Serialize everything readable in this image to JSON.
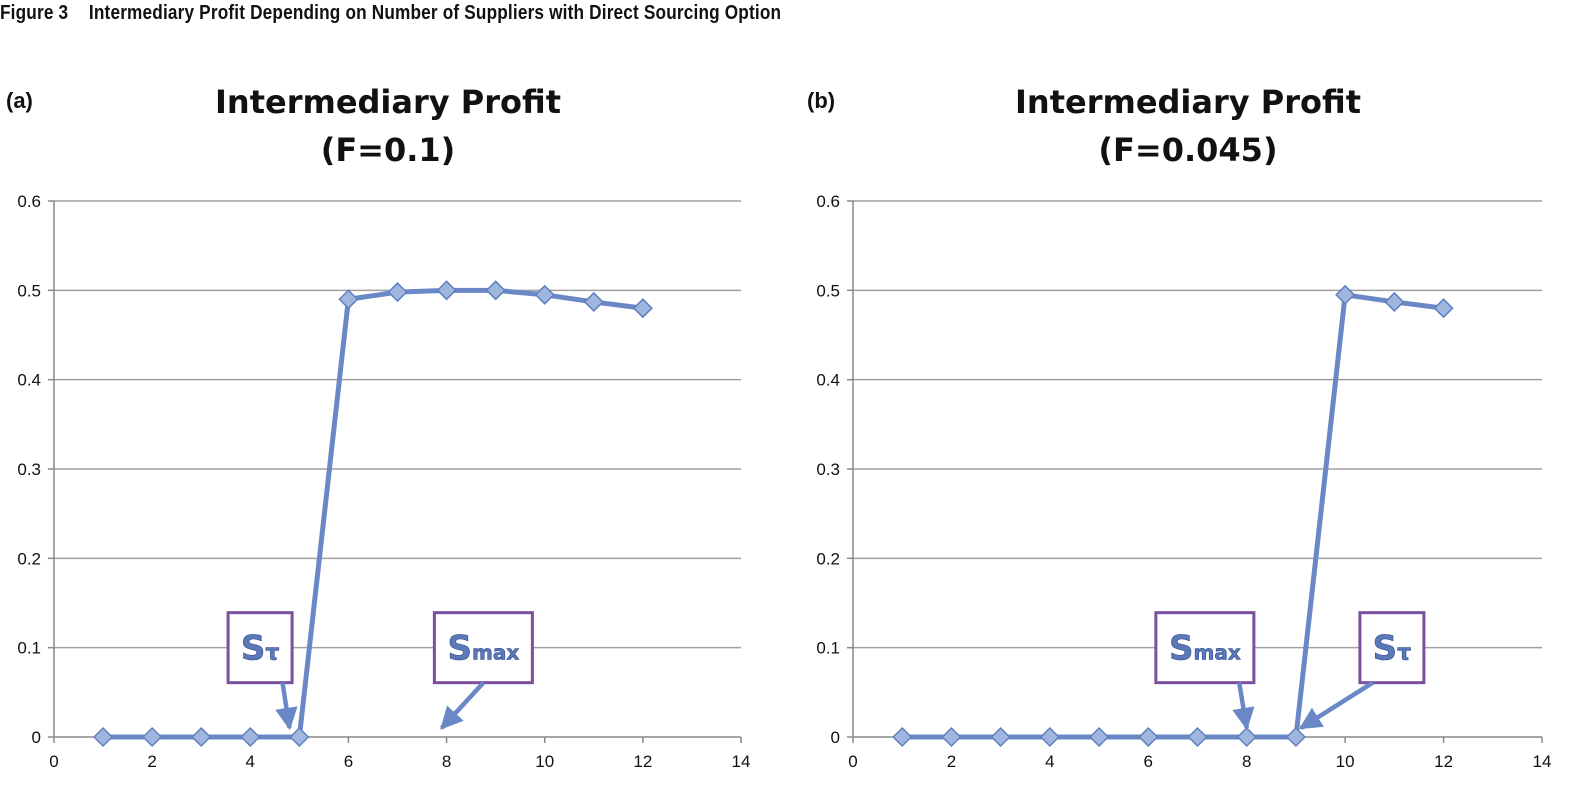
{
  "figure": {
    "label": "Figure 3",
    "caption": "Intermediary Profit Depending on Number of Suppliers with Direct Sourcing Option"
  },
  "colors": {
    "line": "#6a88c6",
    "marker": "#9fb6de",
    "marker_edge": "#5f7fbf",
    "grid": "#a0a0a0",
    "annotation_border": "#7b4f9e",
    "annotation_text": "#5b78b8"
  },
  "chart_data": [
    {
      "type": "line",
      "panel": "(a)",
      "title": "Intermediary Profit",
      "subtitle": "(F=0.1)",
      "x": [
        1,
        2,
        3,
        4,
        5,
        6,
        7,
        8,
        9,
        10,
        11,
        12
      ],
      "y": [
        0,
        0,
        0,
        0,
        0,
        0.49,
        0.498,
        0.5,
        0.5,
        0.495,
        0.487,
        0.48
      ],
      "xlim": [
        0,
        14
      ],
      "ylim": [
        0,
        0.6
      ],
      "xticks": [
        0,
        2,
        4,
        6,
        8,
        10,
        12,
        14
      ],
      "yticks": [
        0,
        0.1,
        0.2,
        0.3,
        0.4,
        0.5,
        0.6
      ],
      "xtick_labels": [
        "0",
        "2",
        "4",
        "6",
        "8",
        "10",
        "12",
        "14"
      ],
      "ytick_labels": [
        "0",
        "0.1",
        "0.2",
        "0.3",
        "0.4",
        "0.5",
        "0.6"
      ],
      "grid": true,
      "marker": "diamond",
      "annotations": [
        {
          "main": "S",
          "sub": "τ",
          "box_x": 4.2,
          "box_y": 0.1,
          "point_x": 4.8,
          "point_y": 0.01
        },
        {
          "main": "S",
          "sub": "max",
          "box_x": 8.75,
          "box_y": 0.1,
          "point_x": 7.9,
          "point_y": 0.01
        }
      ]
    },
    {
      "type": "line",
      "panel": "(b)",
      "title": "Intermediary Profit",
      "subtitle": "(F=0.045)",
      "x": [
        1,
        2,
        3,
        4,
        5,
        6,
        7,
        8,
        9,
        10,
        11,
        12
      ],
      "y": [
        0,
        0,
        0,
        0,
        0,
        0,
        0,
        0,
        0,
        0.495,
        0.487,
        0.48
      ],
      "xlim": [
        0,
        14
      ],
      "ylim": [
        0,
        0.6
      ],
      "xticks": [
        0,
        2,
        4,
        6,
        8,
        10,
        12,
        14
      ],
      "yticks": [
        0,
        0.1,
        0.2,
        0.3,
        0.4,
        0.5,
        0.6
      ],
      "xtick_labels": [
        "0",
        "2",
        "4",
        "6",
        "8",
        "10",
        "12",
        "14"
      ],
      "ytick_labels": [
        "0",
        "0.1",
        "0.2",
        "0.3",
        "0.4",
        "0.5",
        "0.6"
      ],
      "grid": true,
      "marker": "diamond",
      "annotations": [
        {
          "main": "S",
          "sub": "max",
          "box_x": 7.15,
          "box_y": 0.1,
          "point_x": 8.0,
          "point_y": 0.01
        },
        {
          "main": "S",
          "sub": "τ",
          "box_x": 10.95,
          "box_y": 0.1,
          "point_x": 9.1,
          "point_y": 0.01
        }
      ]
    }
  ]
}
